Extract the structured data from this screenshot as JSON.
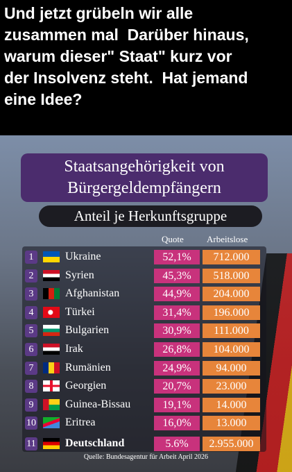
{
  "post": {
    "lines": [
      "Und jetzt grübeln wir alle",
      "zusammen mal  Darüber hinaus,",
      "warum dieser\" Staat\" kurz vor",
      "der Insolvenz steht.  Hat jemand",
      "eine Idee?"
    ]
  },
  "infographic": {
    "title_lines": [
      "Staatsangehörigkeit von",
      "Bürgergeldempfängern"
    ],
    "subtitle": "Anteil je Herkunftsgruppe",
    "columns": [
      "Quote",
      "Arbeitslose"
    ],
    "rows": [
      [
        "1",
        "Ukraine",
        "52,1%",
        "712.000"
      ],
      [
        "2",
        "Syrien",
        "45,3%",
        "518.000"
      ],
      [
        "3",
        "Afghanistan",
        "44,9%",
        "204.000"
      ],
      [
        "4",
        "Türkei",
        "31,4%",
        "196.000"
      ],
      [
        "5",
        "Bulgarien",
        "30,9%",
        "111.000"
      ],
      [
        "6",
        "Irak",
        "26,8%",
        "104.000"
      ],
      [
        "7",
        "Rumänien",
        "24,9%",
        "94.000"
      ],
      [
        "8",
        "Georgien",
        "20,7%",
        "23.000"
      ],
      [
        "9",
        "Guinea-Bissau",
        "19,1%",
        "14.000"
      ],
      [
        "10",
        "Eritrea",
        "16,0%",
        "13.000"
      ],
      [
        "11",
        "Deutschland",
        "5.6%",
        "2.955.000"
      ]
    ],
    "source": "Quelle: Bundesagentur für Arbeit April 2026"
  }
}
